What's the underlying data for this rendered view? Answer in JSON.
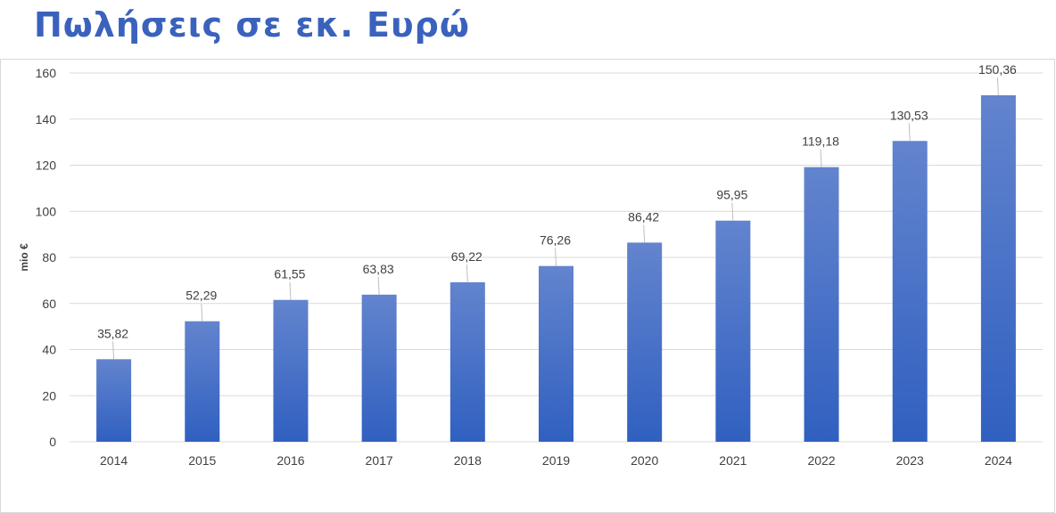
{
  "title": "Πωλήσεις σε εκ. Ευρώ",
  "colors": {
    "title": "#3a62bd",
    "bar_top": "#6384ce",
    "bar_bottom": "#3060c0",
    "gridline": "#d9d9d9",
    "text": "#404040"
  },
  "chart_data": {
    "type": "bar",
    "title": "",
    "xlabel": "",
    "ylabel": "mio €",
    "ylim": [
      0,
      160
    ],
    "yticks": [
      0,
      20,
      40,
      60,
      80,
      100,
      120,
      140,
      160
    ],
    "ytick_labels": [
      "0",
      "20",
      "40",
      "60",
      "80",
      "100",
      "120",
      "140",
      "160"
    ],
    "grid": true,
    "legend": "none",
    "categories": [
      "2014",
      "2015",
      "2016",
      "2017",
      "2018",
      "2019",
      "2020",
      "2021",
      "2022",
      "2023",
      "2024"
    ],
    "values": [
      35.82,
      52.29,
      61.55,
      63.83,
      69.22,
      76.26,
      86.42,
      95.95,
      119.18,
      130.53,
      150.36
    ],
    "value_labels": [
      "35,82",
      "52,29",
      "61,55",
      "63,83",
      "69,22",
      "76,26",
      "86,42",
      "95,95",
      "119,18",
      "130,53",
      "150,36"
    ]
  }
}
